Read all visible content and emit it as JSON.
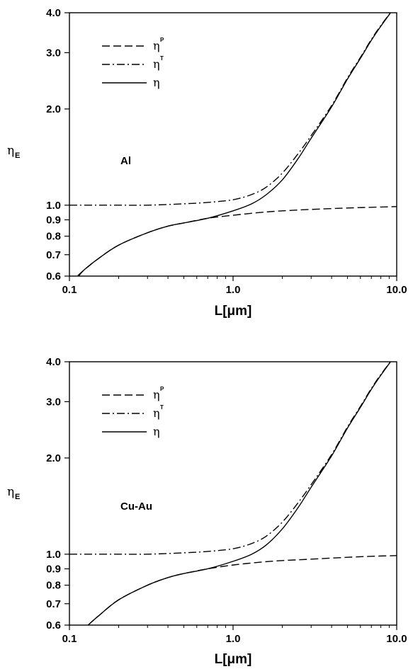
{
  "chart_data": [
    {
      "type": "line",
      "annotation": "Al",
      "xlabel": "L[μm]",
      "ylabel": "η",
      "ylabel_sub": "E",
      "x_scale": "log",
      "y_scale": "log",
      "xlim": [
        0.1,
        10.0
      ],
      "ylim": [
        0.6,
        4.0
      ],
      "x_ticks": [
        {
          "v": 0.1,
          "label": "0.1"
        },
        {
          "v": 1.0,
          "label": "1.0"
        },
        {
          "v": 10.0,
          "label": "10.0"
        }
      ],
      "y_ticks": [
        {
          "v": 0.6,
          "label": "0.6"
        },
        {
          "v": 0.7,
          "label": "0.7"
        },
        {
          "v": 0.8,
          "label": "0.8"
        },
        {
          "v": 0.9,
          "label": "0.9"
        },
        {
          "v": 1.0,
          "label": "1.0"
        },
        {
          "v": 2.0,
          "label": "2.0"
        },
        {
          "v": 3.0,
          "label": "3.0"
        },
        {
          "v": 4.0,
          "label": "4.0"
        }
      ],
      "legend_position": "top-left",
      "grid": false,
      "series": [
        {
          "name": "η",
          "name_sup": "P",
          "style": "dashed",
          "x": [
            0.1,
            0.12,
            0.15,
            0.2,
            0.3,
            0.4,
            0.5,
            0.7,
            1.0,
            1.5,
            2.0,
            3.0,
            5.0,
            7.0,
            10.0
          ],
          "y": [
            0.57,
            0.62,
            0.68,
            0.75,
            0.82,
            0.86,
            0.88,
            0.91,
            0.93,
            0.95,
            0.96,
            0.97,
            0.98,
            0.985,
            0.99
          ]
        },
        {
          "name": "η",
          "name_sup": "T",
          "style": "dashdot",
          "x": [
            0.1,
            0.2,
            0.3,
            0.5,
            0.7,
            1.0,
            1.3,
            1.6,
            2.0,
            2.5,
            3.0,
            4.0,
            5.0,
            6.0,
            7.0,
            8.0,
            9.5
          ],
          "y": [
            1.0,
            1.0,
            1.0,
            1.01,
            1.02,
            1.04,
            1.08,
            1.14,
            1.26,
            1.45,
            1.65,
            2.05,
            2.5,
            2.9,
            3.3,
            3.65,
            4.1
          ]
        },
        {
          "name": "η",
          "name_sup": "",
          "style": "solid",
          "x": [
            0.11,
            0.12,
            0.15,
            0.2,
            0.3,
            0.4,
            0.5,
            0.7,
            1.0,
            1.3,
            1.6,
            2.0,
            2.5,
            3.0,
            4.0,
            5.0,
            6.0,
            7.0,
            8.0,
            9.5
          ],
          "y": [
            0.58,
            0.62,
            0.68,
            0.75,
            0.82,
            0.86,
            0.88,
            0.91,
            0.96,
            1.01,
            1.08,
            1.2,
            1.4,
            1.62,
            2.03,
            2.48,
            2.88,
            3.28,
            3.63,
            4.1
          ]
        }
      ]
    },
    {
      "type": "line",
      "annotation": "Cu-Au",
      "xlabel": "L[μm]",
      "ylabel": "η",
      "ylabel_sub": "E",
      "x_scale": "log",
      "y_scale": "log",
      "xlim": [
        0.1,
        10.0
      ],
      "ylim": [
        0.6,
        4.0
      ],
      "x_ticks": [
        {
          "v": 0.1,
          "label": "0.1"
        },
        {
          "v": 1.0,
          "label": "1.0"
        },
        {
          "v": 10.0,
          "label": "10.0"
        }
      ],
      "y_ticks": [
        {
          "v": 0.6,
          "label": "0.6"
        },
        {
          "v": 0.7,
          "label": "0.7"
        },
        {
          "v": 0.8,
          "label": "0.8"
        },
        {
          "v": 0.9,
          "label": "0.9"
        },
        {
          "v": 1.0,
          "label": "1.0"
        },
        {
          "v": 2.0,
          "label": "2.0"
        },
        {
          "v": 3.0,
          "label": "3.0"
        },
        {
          "v": 4.0,
          "label": "4.0"
        }
      ],
      "legend_position": "top-left",
      "grid": false,
      "series": [
        {
          "name": "η",
          "name_sup": "P",
          "style": "dashed",
          "x": [
            0.13,
            0.15,
            0.2,
            0.3,
            0.4,
            0.5,
            0.7,
            1.0,
            1.5,
            2.0,
            3.0,
            5.0,
            7.0,
            10.0
          ],
          "y": [
            0.6,
            0.64,
            0.72,
            0.8,
            0.845,
            0.87,
            0.9,
            0.925,
            0.945,
            0.955,
            0.965,
            0.978,
            0.985,
            0.99
          ]
        },
        {
          "name": "η",
          "name_sup": "T",
          "style": "dashdot",
          "x": [
            0.1,
            0.2,
            0.3,
            0.5,
            0.7,
            1.0,
            1.3,
            1.6,
            2.0,
            2.5,
            3.0,
            4.0,
            5.0,
            6.0,
            7.0,
            8.0,
            9.5
          ],
          "y": [
            1.0,
            1.0,
            1.0,
            1.01,
            1.02,
            1.04,
            1.08,
            1.14,
            1.26,
            1.45,
            1.65,
            2.05,
            2.5,
            2.9,
            3.3,
            3.65,
            4.1
          ]
        },
        {
          "name": "η",
          "name_sup": "",
          "style": "solid",
          "x": [
            0.13,
            0.15,
            0.2,
            0.3,
            0.4,
            0.5,
            0.7,
            1.0,
            1.3,
            1.6,
            2.0,
            2.5,
            3.0,
            4.0,
            5.0,
            6.0,
            7.0,
            8.0,
            9.5
          ],
          "y": [
            0.6,
            0.64,
            0.72,
            0.8,
            0.845,
            0.87,
            0.9,
            0.95,
            1.0,
            1.07,
            1.2,
            1.4,
            1.62,
            2.03,
            2.48,
            2.88,
            3.28,
            3.63,
            4.1
          ]
        }
      ]
    }
  ]
}
